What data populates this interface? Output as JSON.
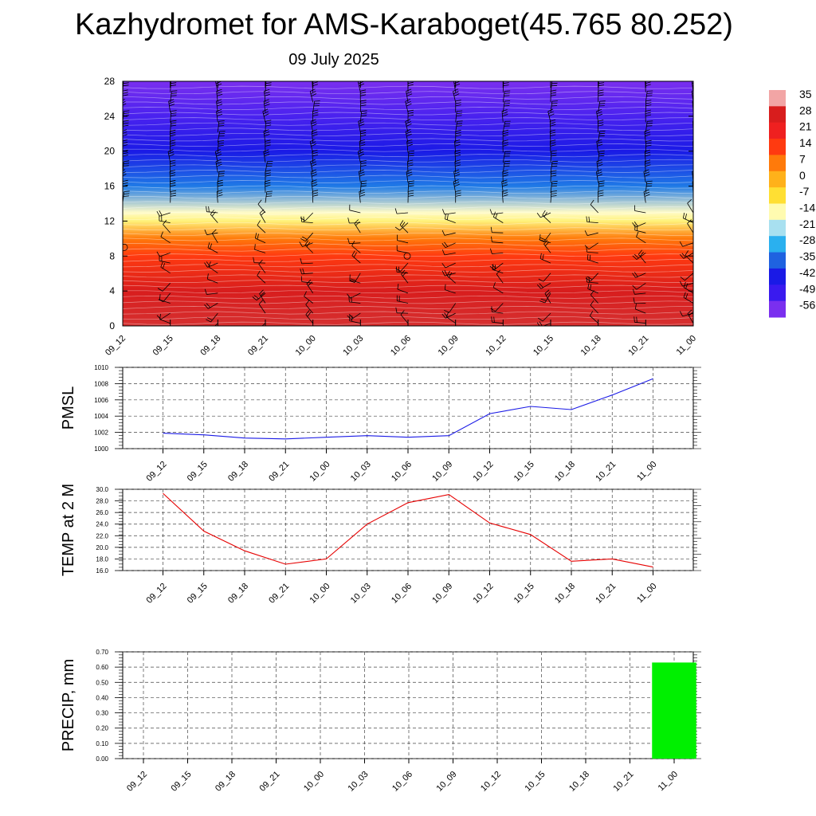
{
  "title": "Kazhydromet for AMS-Karaboget(45.765 80.252)",
  "subtitle": "09 July 2025",
  "chart_data": [
    {
      "type": "heatmap",
      "title": "",
      "xlabel": "",
      "ylabel": "",
      "x": [
        "09_12",
        "09_15",
        "09_18",
        "09_21",
        "10_00",
        "10_03",
        "10_06",
        "10_09",
        "10_12",
        "10_15",
        "10_18",
        "10_21",
        "11_00"
      ],
      "y_ticks": [
        0,
        4,
        8,
        12,
        16,
        20,
        24,
        28
      ],
      "ylim": [
        0,
        28
      ],
      "temperature_profile_by_level": [
        {
          "y": 0,
          "value": 33
        },
        {
          "y": 4,
          "value": 28
        },
        {
          "y": 8,
          "value": 18
        },
        {
          "y": 10,
          "value": 10
        },
        {
          "y": 12,
          "value": -3
        },
        {
          "y": 13,
          "value": -12
        },
        {
          "y": 16,
          "value": -30
        },
        {
          "y": 20,
          "value": -48
        },
        {
          "y": 24,
          "value": -58
        },
        {
          "y": 28,
          "value": -64
        }
      ],
      "colorbar": {
        "labels": [
          "35",
          "28",
          "21",
          "14",
          "7",
          "0",
          "-7",
          "-14",
          "-21",
          "-28",
          "-35",
          "-42",
          "-49",
          "-56"
        ],
        "colors": [
          "#f2a5a5",
          "#d81d1d",
          "#ef2020",
          "#ff3a10",
          "#ff7a0a",
          "#ffb11a",
          "#ffdf33",
          "#fffbb0",
          "#a8e0f0",
          "#2ab0ef",
          "#1f62e0",
          "#1a1ae6",
          "#3a1aef",
          "#7a2fef"
        ]
      },
      "overlay": "wind barbs"
    },
    {
      "type": "line",
      "ylabel": "PMSL",
      "x": [
        "09_12",
        "09_15",
        "09_18",
        "09_21",
        "10_00",
        "10_03",
        "10_06",
        "10_09",
        "10_12",
        "10_15",
        "10_18",
        "10_21",
        "11_00"
      ],
      "values": [
        1001.9,
        1001.7,
        1001.3,
        1001.2,
        1001.4,
        1001.6,
        1001.4,
        1001.6,
        1004.3,
        1005.2,
        1004.8,
        1006.6,
        1008.6
      ],
      "ylim": [
        1000,
        1010
      ],
      "y_ticks": [
        "1000",
        "1002",
        "1004",
        "1006",
        "1008",
        "1010"
      ],
      "color": "#1a1ae6",
      "grid": true
    },
    {
      "type": "line",
      "ylabel": "TEMP at 2 M",
      "x": [
        "09_12",
        "09_15",
        "09_18",
        "09_21",
        "10_00",
        "10_03",
        "10_06",
        "10_09",
        "10_12",
        "10_15",
        "10_18",
        "10_21",
        "11_00"
      ],
      "values": [
        29.3,
        22.8,
        19.4,
        17.1,
        18.0,
        24.0,
        27.7,
        29.1,
        24.2,
        22.2,
        17.6,
        18.0,
        16.6
      ],
      "ylim": [
        16,
        30
      ],
      "y_ticks": [
        "16.0",
        "18.0",
        "20.0",
        "22.0",
        "24.0",
        "26.0",
        "28.0",
        "30.0"
      ],
      "color": "#e60000",
      "grid": true
    },
    {
      "type": "bar",
      "ylabel": "PRECIP, mm",
      "categories": [
        "09_12",
        "09_15",
        "09_18",
        "09_21",
        "10_00",
        "10_03",
        "10_06",
        "10_09",
        "10_12",
        "10_15",
        "10_18",
        "10_21",
        "11_00"
      ],
      "values": [
        0,
        0,
        0,
        0,
        0,
        0,
        0,
        0,
        0,
        0,
        0,
        0,
        0.63
      ],
      "ylim": [
        0,
        0.7
      ],
      "y_ticks": [
        "0.00",
        "0.10",
        "0.20",
        "0.30",
        "0.40",
        "0.50",
        "0.60",
        "0.70"
      ],
      "color": "#00f000",
      "grid": true
    }
  ]
}
